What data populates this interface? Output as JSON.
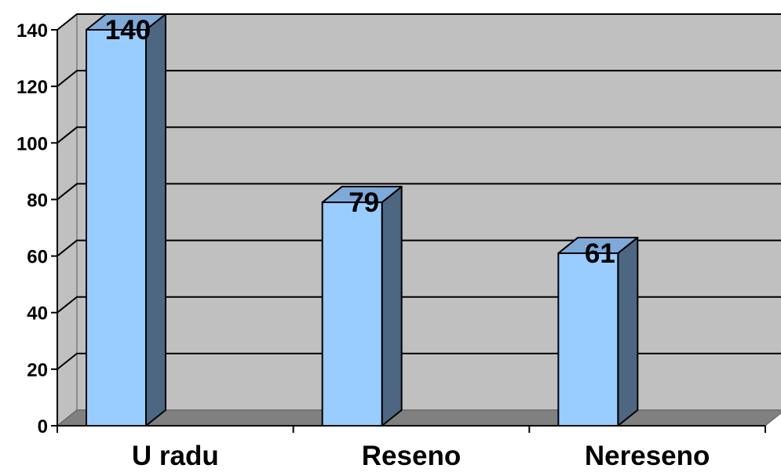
{
  "chart_data": {
    "type": "bar",
    "categories": [
      "U radu",
      "Reseno",
      "Nereseno"
    ],
    "values": [
      140,
      79,
      61
    ],
    "data_labels": [
      "140",
      "79",
      "61"
    ],
    "yticks": [
      0,
      20,
      40,
      60,
      80,
      100,
      120,
      140
    ],
    "ytick_labels": [
      "0",
      "20",
      "40",
      "60",
      "80",
      "100",
      "120",
      "140"
    ],
    "ylim": [
      0,
      140
    ],
    "grid": true,
    "legend": "none",
    "style": "3d-column",
    "colors": {
      "bar_front": "#99ccff",
      "bar_side": "#4d6682",
      "bar_top": "#7ea9d8",
      "plot_back": "#c0c0c0",
      "plot_side": "#c0c0c0",
      "floor": "#808080",
      "gridline": "#000000"
    }
  }
}
